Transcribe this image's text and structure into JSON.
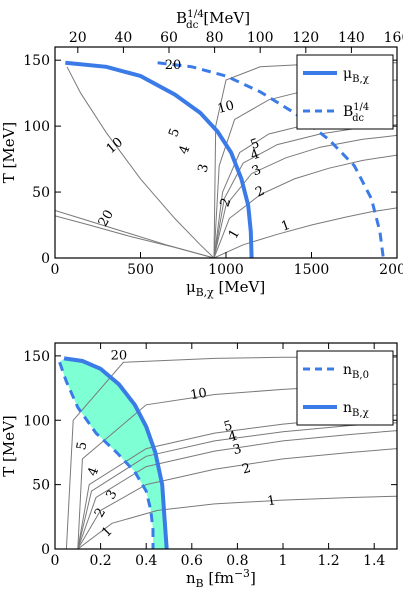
{
  "colors": {
    "accent": "#3b7be8",
    "fill": "#7fffd4",
    "curve": "#7a7a7a",
    "frame": "#000000"
  },
  "chart_data": [
    {
      "type": "line",
      "xlabel": "μB,χ [MeV]",
      "top_xlabel": "B_dc^1/4 [MeV]",
      "ylabel": "T [MeV]",
      "xlim": [
        0,
        2000
      ],
      "ylim": [
        0,
        160
      ],
      "top_xlim": [
        10,
        160
      ],
      "x_ticks": [
        "0",
        "500",
        "1000",
        "1500",
        "2000"
      ],
      "top_ticks": [
        "20",
        "40",
        "60",
        "80",
        "100",
        "120",
        "140",
        "160"
      ],
      "y_ticks": [
        "0",
        "50",
        "100",
        "150"
      ],
      "legend": {
        "position": "top-right",
        "entries": [
          {
            "label": "μB,χ",
            "style": "solid"
          },
          {
            "label": "B_dc^1/4",
            "style": "dashed"
          }
        ]
      },
      "series": [
        {
          "name": "μB,χ",
          "style": "solid",
          "x": [
            60,
            300,
            500,
            700,
            850,
            950,
            1030,
            1090,
            1130,
            1145,
            1150
          ],
          "y": [
            148,
            145,
            138,
            124,
            110,
            96,
            80,
            60,
            40,
            20,
            0
          ]
        },
        {
          "name": "B_dc^1/4",
          "style": "dashed",
          "x": [
            600,
            800,
            1000,
            1200,
            1400,
            1600,
            1750,
            1850,
            1900,
            1920
          ],
          "y": [
            148,
            145,
            138,
            126,
            110,
            90,
            70,
            45,
            20,
            0
          ]
        }
      ],
      "contours": [
        {
          "label": "1",
          "x": [
            930,
            1100,
            1300,
            1500,
            1700,
            1850,
            2000
          ],
          "y": [
            0,
            10,
            18,
            25,
            31,
            35,
            38
          ]
        },
        {
          "label": "2",
          "x": [
            930,
            1020,
            1200,
            1400,
            1600,
            1800,
            2000
          ],
          "y": [
            0,
            30,
            48,
            60,
            68,
            74,
            78
          ]
        },
        {
          "label": "3",
          "x": [
            930,
            1000,
            1150,
            1350,
            1550,
            1800,
            2000
          ],
          "y": [
            0,
            40,
            64,
            76,
            84,
            90,
            93
          ]
        },
        {
          "label": "4",
          "x": [
            930,
            990,
            1100,
            1300,
            1550,
            1800,
            2000
          ],
          "y": [
            0,
            45,
            72,
            86,
            94,
            99,
            101
          ]
        },
        {
          "label": "5",
          "x": [
            930,
            980,
            1080,
            1250,
            1500,
            1800,
            2000
          ],
          "y": [
            0,
            50,
            80,
            94,
            102,
            106,
            108
          ]
        },
        {
          "label": "10",
          "x": [
            930,
            960,
            1050,
            1250,
            1500,
            1750,
            2000
          ],
          "y": [
            0,
            70,
            105,
            120,
            128,
            133,
            135
          ]
        },
        {
          "label": "20",
          "x": [
            930,
            940,
            1000,
            1200,
            1500,
            2000
          ],
          "y": [
            0,
            100,
            135,
            145,
            147,
            148
          ]
        },
        {
          "label": "",
          "x": [
            930,
            850,
            700,
            500,
            300,
            150,
            70
          ],
          "y": [
            0,
            10,
            30,
            60,
            95,
            125,
            145
          ]
        },
        {
          "label": "",
          "x": [
            930,
            650,
            400,
            150,
            0
          ],
          "y": [
            0,
            10,
            20,
            30,
            36
          ]
        },
        {
          "label": "",
          "x": [
            930,
            700,
            450,
            200,
            0
          ],
          "y": [
            0,
            8,
            16,
            25,
            32
          ]
        }
      ],
      "labels": [
        {
          "text": "20",
          "x": 300,
          "y": 30,
          "rotate": 60
        },
        {
          "text": "10",
          "x": 350,
          "y": 85,
          "rotate": 40
        },
        {
          "text": "5",
          "x": 700,
          "y": 95,
          "rotate": 70
        },
        {
          "text": "4",
          "x": 760,
          "y": 82,
          "rotate": 70
        },
        {
          "text": "3",
          "x": 870,
          "y": 68,
          "rotate": 75
        },
        {
          "text": "2",
          "x": 1000,
          "y": 42,
          "rotate": 70
        },
        {
          "text": "1",
          "x": 1050,
          "y": 18,
          "rotate": 60
        },
        {
          "text": "20",
          "x": 690,
          "y": 146,
          "rotate": 0
        },
        {
          "text": "10",
          "x": 1000,
          "y": 114,
          "rotate": 15
        },
        {
          "text": "5",
          "x": 1170,
          "y": 86,
          "rotate": 20
        },
        {
          "text": "4",
          "x": 1170,
          "y": 78,
          "rotate": 20
        },
        {
          "text": "3",
          "x": 1180,
          "y": 66,
          "rotate": 25
        },
        {
          "text": "2",
          "x": 1200,
          "y": 50,
          "rotate": 25
        },
        {
          "text": "1",
          "x": 1350,
          "y": 24,
          "rotate": 20
        }
      ]
    },
    {
      "type": "area",
      "xlabel": "nB [fm−3]",
      "ylabel": "T [MeV]",
      "xlim": [
        0,
        1.5
      ],
      "ylim": [
        0,
        160
      ],
      "x_ticks": [
        "0",
        "0.2",
        "0.4",
        "0.6",
        "0.8",
        "1",
        "1.2",
        "1.4"
      ],
      "y_ticks": [
        "0",
        "50",
        "100",
        "150"
      ],
      "legend": {
        "position": "top-right",
        "entries": [
          {
            "label": "nB,0",
            "style": "dashed"
          },
          {
            "label": "nB,χ",
            "style": "solid"
          }
        ]
      },
      "series": [
        {
          "name": "nB,0",
          "style": "dashed",
          "x": [
            0.02,
            0.05,
            0.1,
            0.18,
            0.27,
            0.35,
            0.4,
            0.42,
            0.43,
            0.43
          ],
          "y": [
            145,
            130,
            110,
            90,
            75,
            60,
            45,
            30,
            15,
            0
          ]
        },
        {
          "name": "nB,χ",
          "style": "solid",
          "x": [
            0.04,
            0.12,
            0.2,
            0.28,
            0.35,
            0.4,
            0.44,
            0.47,
            0.48,
            0.49
          ],
          "y": [
            148,
            146,
            140,
            128,
            112,
            95,
            75,
            50,
            25,
            0
          ]
        }
      ],
      "contours": [
        {
          "label": "1",
          "x": [
            0.1,
            0.25,
            0.45,
            0.7,
            1.0,
            1.3,
            1.5
          ],
          "y": [
            0,
            20,
            30,
            35,
            38,
            40,
            41
          ]
        },
        {
          "label": "2",
          "x": [
            0.1,
            0.2,
            0.4,
            0.7,
            1.0,
            1.3,
            1.5
          ],
          "y": [
            0,
            30,
            50,
            62,
            70,
            75,
            78
          ]
        },
        {
          "label": "3",
          "x": [
            0.1,
            0.18,
            0.4,
            0.7,
            1.0,
            1.3,
            1.5
          ],
          "y": [
            0,
            40,
            64,
            76,
            84,
            89,
            92
          ]
        },
        {
          "label": "4",
          "x": [
            0.1,
            0.16,
            0.4,
            0.7,
            1.0,
            1.3,
            1.5
          ],
          "y": [
            0,
            45,
            72,
            84,
            91,
            96,
            98
          ]
        },
        {
          "label": "5",
          "x": [
            0.1,
            0.15,
            0.4,
            0.7,
            1.0,
            1.3,
            1.5
          ],
          "y": [
            0,
            50,
            78,
            90,
            97,
            102,
            104
          ]
        },
        {
          "label": "10",
          "x": [
            0.1,
            0.12,
            0.4,
            0.7,
            1.0,
            1.3,
            1.5
          ],
          "y": [
            0,
            70,
            112,
            120,
            124,
            127,
            128
          ]
        },
        {
          "label": "20",
          "x": [
            0.05,
            0.08,
            0.3,
            0.7,
            1.0,
            1.5
          ],
          "y": [
            0,
            100,
            145,
            148,
            149,
            149
          ]
        }
      ],
      "labels": [
        {
          "text": "5",
          "x": 0.12,
          "y": 80,
          "rotate": 80
        },
        {
          "text": "4",
          "x": 0.17,
          "y": 60,
          "rotate": 70
        },
        {
          "text": "3",
          "x": 0.25,
          "y": 42,
          "rotate": 60
        },
        {
          "text": "2",
          "x": 0.2,
          "y": 28,
          "rotate": 60
        },
        {
          "text": "1",
          "x": 0.23,
          "y": 13,
          "rotate": 45
        },
        {
          "text": "20",
          "x": 0.28,
          "y": 150,
          "rotate": 0
        },
        {
          "text": "10",
          "x": 0.63,
          "y": 120,
          "rotate": 10
        },
        {
          "text": "5",
          "x": 0.76,
          "y": 95,
          "rotate": 15
        },
        {
          "text": "4",
          "x": 0.78,
          "y": 87,
          "rotate": 15
        },
        {
          "text": "3",
          "x": 0.8,
          "y": 77,
          "rotate": 15
        },
        {
          "text": "2",
          "x": 0.84,
          "y": 62,
          "rotate": 15
        },
        {
          "text": "1",
          "x": 0.95,
          "y": 37,
          "rotate": 10
        }
      ]
    }
  ]
}
